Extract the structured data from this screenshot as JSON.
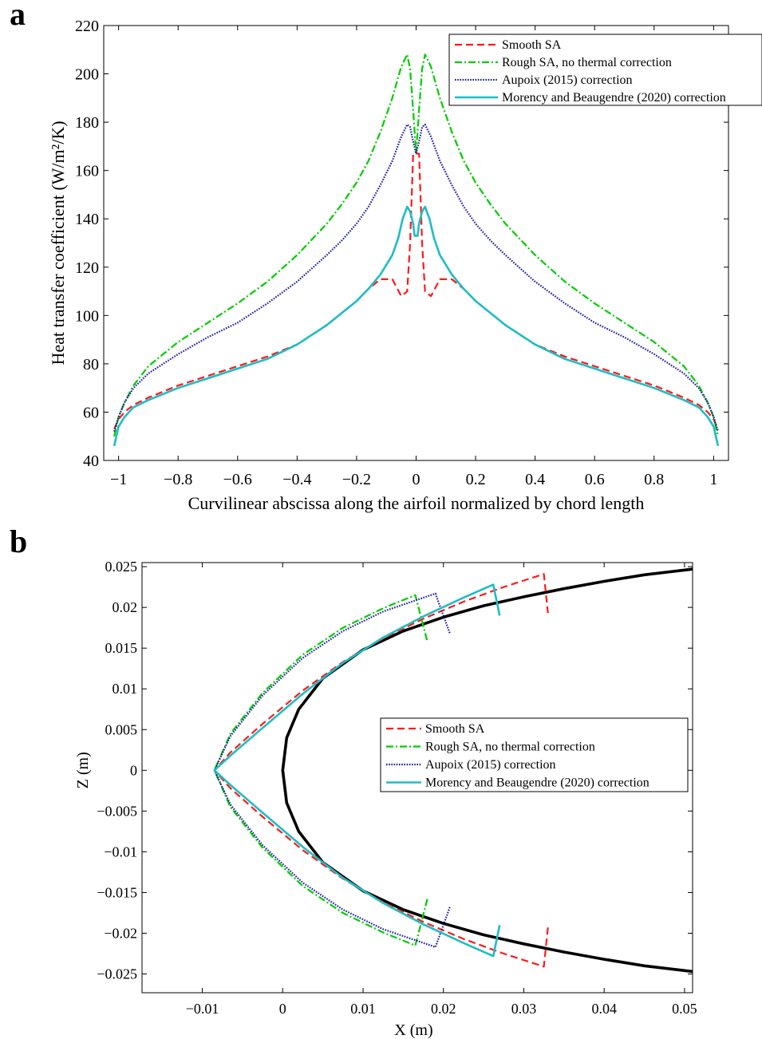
{
  "panel_labels": [
    "a",
    "b"
  ],
  "colors": {
    "smooth": "#ff1a1a",
    "rough": "#00cc00",
    "aupoix": "#1a1aa0",
    "morency": "#1ebdc4",
    "wall": "#000000"
  },
  "chart_data": [
    {
      "type": "line",
      "xlabel": "Curvilinear abscissa along the airfoil normalized by chord length",
      "ylabel": "Heat transfer coefficient (W/m²/K)",
      "xlim": [
        -1.05,
        1.05
      ],
      "ylim": [
        40,
        220
      ],
      "xticks": [
        -1,
        -0.8,
        -0.6,
        -0.4,
        -0.2,
        0,
        0.2,
        0.4,
        0.6,
        0.8,
        1
      ],
      "xtick_labels": [
        "−1",
        "−0.8",
        "−0.6",
        "−0.4",
        "−0.2",
        "0",
        "0.2",
        "0.4",
        "0.6",
        "0.8",
        "1"
      ],
      "yticks": [
        40,
        60,
        80,
        100,
        120,
        140,
        160,
        180,
        200,
        220
      ],
      "ytick_labels": [
        "40",
        "60",
        "80",
        "100",
        "120",
        "140",
        "160",
        "180",
        "200",
        "220"
      ],
      "legend_position": "top-right",
      "grid": false,
      "series": [
        {
          "name": "Smooth SA",
          "style": "dashed",
          "color_key": "smooth",
          "x": [
            0.01,
            0.02,
            0.03,
            0.05,
            0.08,
            0.12,
            0.16,
            0.2,
            0.25,
            0.3,
            0.4,
            0.5,
            0.6,
            0.7,
            0.8,
            0.9,
            0.95,
            0.98,
            1.0,
            1.015
          ],
          "y": [
            167,
            130,
            110,
            108,
            115,
            115,
            111,
            106,
            101,
            96,
            88,
            83,
            79,
            75,
            71,
            66,
            63,
            60,
            57,
            53
          ]
        },
        {
          "name": "Rough SA, no thermal correction",
          "style": "dashdot",
          "color_key": "rough",
          "x": [
            0.0,
            0.01,
            0.02,
            0.03,
            0.05,
            0.08,
            0.12,
            0.16,
            0.2,
            0.25,
            0.3,
            0.4,
            0.5,
            0.6,
            0.7,
            0.8,
            0.9,
            0.95,
            0.98,
            1.0,
            1.015
          ],
          "y": [
            167,
            185,
            202,
            208,
            203,
            190,
            176,
            164,
            155,
            146,
            138,
            125,
            114,
            105,
            97,
            89,
            79,
            71,
            64,
            58,
            50
          ]
        },
        {
          "name": "Aupoix (2015) correction",
          "style": "dotted",
          "color_key": "aupoix",
          "x": [
            0.0,
            0.01,
            0.02,
            0.03,
            0.05,
            0.08,
            0.12,
            0.16,
            0.2,
            0.25,
            0.3,
            0.4,
            0.5,
            0.6,
            0.7,
            0.8,
            0.9,
            0.95,
            0.98,
            1.0,
            1.015
          ],
          "y": [
            167,
            172,
            178,
            179,
            174,
            164,
            154,
            145,
            138,
            131,
            125,
            114,
            105,
            97,
            91,
            84,
            76,
            70,
            64,
            58,
            52
          ]
        },
        {
          "name": "Morency and Beaugendre (2020) correction",
          "style": "solid",
          "color_key": "morency",
          "x": [
            0.005,
            0.01,
            0.02,
            0.03,
            0.045,
            0.06,
            0.08,
            0.12,
            0.16,
            0.2,
            0.25,
            0.3,
            0.4,
            0.5,
            0.6,
            0.7,
            0.8,
            0.9,
            0.95,
            0.98,
            1.0,
            1.015
          ],
          "y": [
            133,
            138,
            143,
            145,
            140,
            132,
            125,
            117,
            111,
            106,
            101,
            96,
            88,
            82,
            78,
            74,
            70,
            65,
            62,
            58,
            54,
            46
          ]
        }
      ]
    },
    {
      "type": "line",
      "xlabel": "X (m)",
      "ylabel": "Z (m)",
      "xlim": [
        -0.0175,
        0.051
      ],
      "ylim": [
        -0.0273,
        0.0255
      ],
      "xticks": [
        -0.01,
        0,
        0.01,
        0.02,
        0.03,
        0.04,
        0.05
      ],
      "xtick_labels": [
        "−0.01",
        "0",
        "0.01",
        "0.02",
        "0.03",
        "0.04",
        "0.05"
      ],
      "yticks": [
        -0.025,
        -0.02,
        -0.015,
        -0.01,
        -0.005,
        0,
        0.005,
        0.01,
        0.015,
        0.02,
        0.025
      ],
      "ytick_labels": [
        "−0.025",
        "−0.02",
        "−0.015",
        "−0.01",
        "−0.005",
        "0",
        "0.005",
        "0.01",
        "0.015",
        "0.02",
        "0.025"
      ],
      "legend_position": "center-right",
      "grid": false,
      "airfoil": {
        "style": "solid",
        "color_key": "wall",
        "x": [
          0.0,
          0.0005,
          0.002,
          0.005,
          0.01,
          0.015,
          0.02,
          0.025,
          0.03,
          0.035,
          0.04,
          0.045,
          0.051
        ],
        "z": [
          0.0,
          0.004,
          0.0075,
          0.0113,
          0.0148,
          0.0171,
          0.0188,
          0.0202,
          0.0213,
          0.0223,
          0.0232,
          0.024,
          0.0247
        ]
      },
      "series": [
        {
          "name": "Smooth SA",
          "style": "dashed",
          "color_key": "smooth",
          "x": [
            0.033,
            0.0325,
            0.0275,
            0.0225,
            0.0175,
            0.0125,
            0.0075,
            0.0025,
            -0.0025,
            -0.0065,
            -0.0085
          ],
          "z": [
            0.0193,
            0.0241,
            0.0225,
            0.0207,
            0.0186,
            0.0162,
            0.0133,
            0.0098,
            0.0057,
            0.0022,
            0.0
          ]
        },
        {
          "name": "Rough SA, no thermal correction",
          "style": "dashdot",
          "color_key": "rough",
          "x": [
            0.018,
            0.0165,
            0.0125,
            0.0075,
            0.0025,
            -0.0025,
            -0.0065,
            -0.0085
          ],
          "z": [
            0.0158,
            0.0215,
            0.0199,
            0.0175,
            0.0142,
            0.0095,
            0.0045,
            0.0
          ]
        },
        {
          "name": "Aupoix (2015) correction",
          "style": "dotted",
          "color_key": "aupoix",
          "x": [
            0.0208,
            0.019,
            0.0125,
            0.0075,
            0.0025,
            -0.0025,
            -0.0065,
            -0.0085
          ],
          "z": [
            0.0168,
            0.0217,
            0.0195,
            0.0171,
            0.0138,
            0.0092,
            0.0042,
            0.0
          ]
        },
        {
          "name": "Morency and Beaugendre (2020) correction",
          "style": "solid",
          "color_key": "morency",
          "x": [
            0.027,
            0.0262,
            0.0225,
            0.0175,
            0.0125,
            0.0075,
            0.0025,
            -0.0025,
            -0.0065,
            -0.0085
          ],
          "z": [
            0.019,
            0.0228,
            0.0212,
            0.0189,
            0.0163,
            0.0132,
            0.0094,
            0.0052,
            0.0018,
            0.0
          ]
        }
      ]
    }
  ]
}
